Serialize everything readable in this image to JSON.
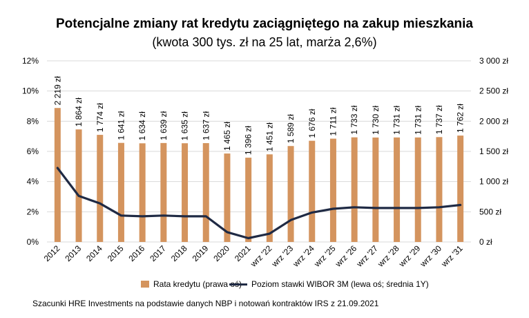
{
  "title": "Potencjalne zmiany rat kredytu zaciągniętego na zakup mieszkania",
  "subtitle": "(kwota 300 tys. zł na 25 lat, marża 2,6%)",
  "source": "Szacunki HRE Investments na podstawie danych NBP i notowań kontraktów IRS z 21.09.2021",
  "colors": {
    "bar": "#d4945e",
    "line": "#1f2a44",
    "grid": "#d9d9d9"
  },
  "chart_data": {
    "type": "bar+line",
    "categories": [
      "2012",
      "2013",
      "2014",
      "2015",
      "2016",
      "2017",
      "2018",
      "2019",
      "2020",
      "2021",
      "wrz '22",
      "wrz '23",
      "wrz '24",
      "wrz '25",
      "wrz '26",
      "wrz '27",
      "wrz '28",
      "wrz '29",
      "wrz '30",
      "wrz '31"
    ],
    "series": [
      {
        "name": "Rata kredytu (prawa oś)",
        "type": "bar",
        "axis": "right",
        "values": [
          2219,
          1864,
          1774,
          1641,
          1634,
          1639,
          1635,
          1637,
          1465,
          1396,
          1451,
          1589,
          1676,
          1711,
          1733,
          1730,
          1731,
          1731,
          1737,
          1762
        ],
        "labels": [
          "2 219 zł",
          "1 864 zł",
          "1 774 zł",
          "1 641 zł",
          "1 634 zł",
          "1 639 zł",
          "1 635 zł",
          "1 637 zł",
          "1 465 zł",
          "1 396 zł",
          "1 451 zł",
          "1 589 zł",
          "1 676 zł",
          "1 711 zł",
          "1 733 zł",
          "1 730 zł",
          "1 731 zł",
          "1 731 zł",
          "1 737 zł",
          "1 762 zł"
        ]
      },
      {
        "name": "Poziom stawki WIBOR 3M (lewa oś; średnia 1Y)",
        "type": "line",
        "axis": "left",
        "values": [
          4.9,
          3.05,
          2.55,
          1.75,
          1.7,
          1.75,
          1.7,
          1.7,
          0.65,
          0.25,
          0.55,
          1.45,
          1.95,
          2.2,
          2.3,
          2.25,
          2.25,
          2.25,
          2.3,
          2.45
        ]
      }
    ],
    "left_axis": {
      "ticks": [
        "0%",
        "2%",
        "4%",
        "6%",
        "8%",
        "10%",
        "12%"
      ],
      "ylim": [
        0,
        12
      ]
    },
    "right_axis": {
      "ticks": [
        "0 zł",
        "500 zł",
        "1 000 zł",
        "1 500 zł",
        "2 000 zł",
        "2 500 zł",
        "3 000 zł"
      ],
      "ylim": [
        0,
        3000
      ]
    },
    "grid": true,
    "legend_position": "bottom"
  }
}
